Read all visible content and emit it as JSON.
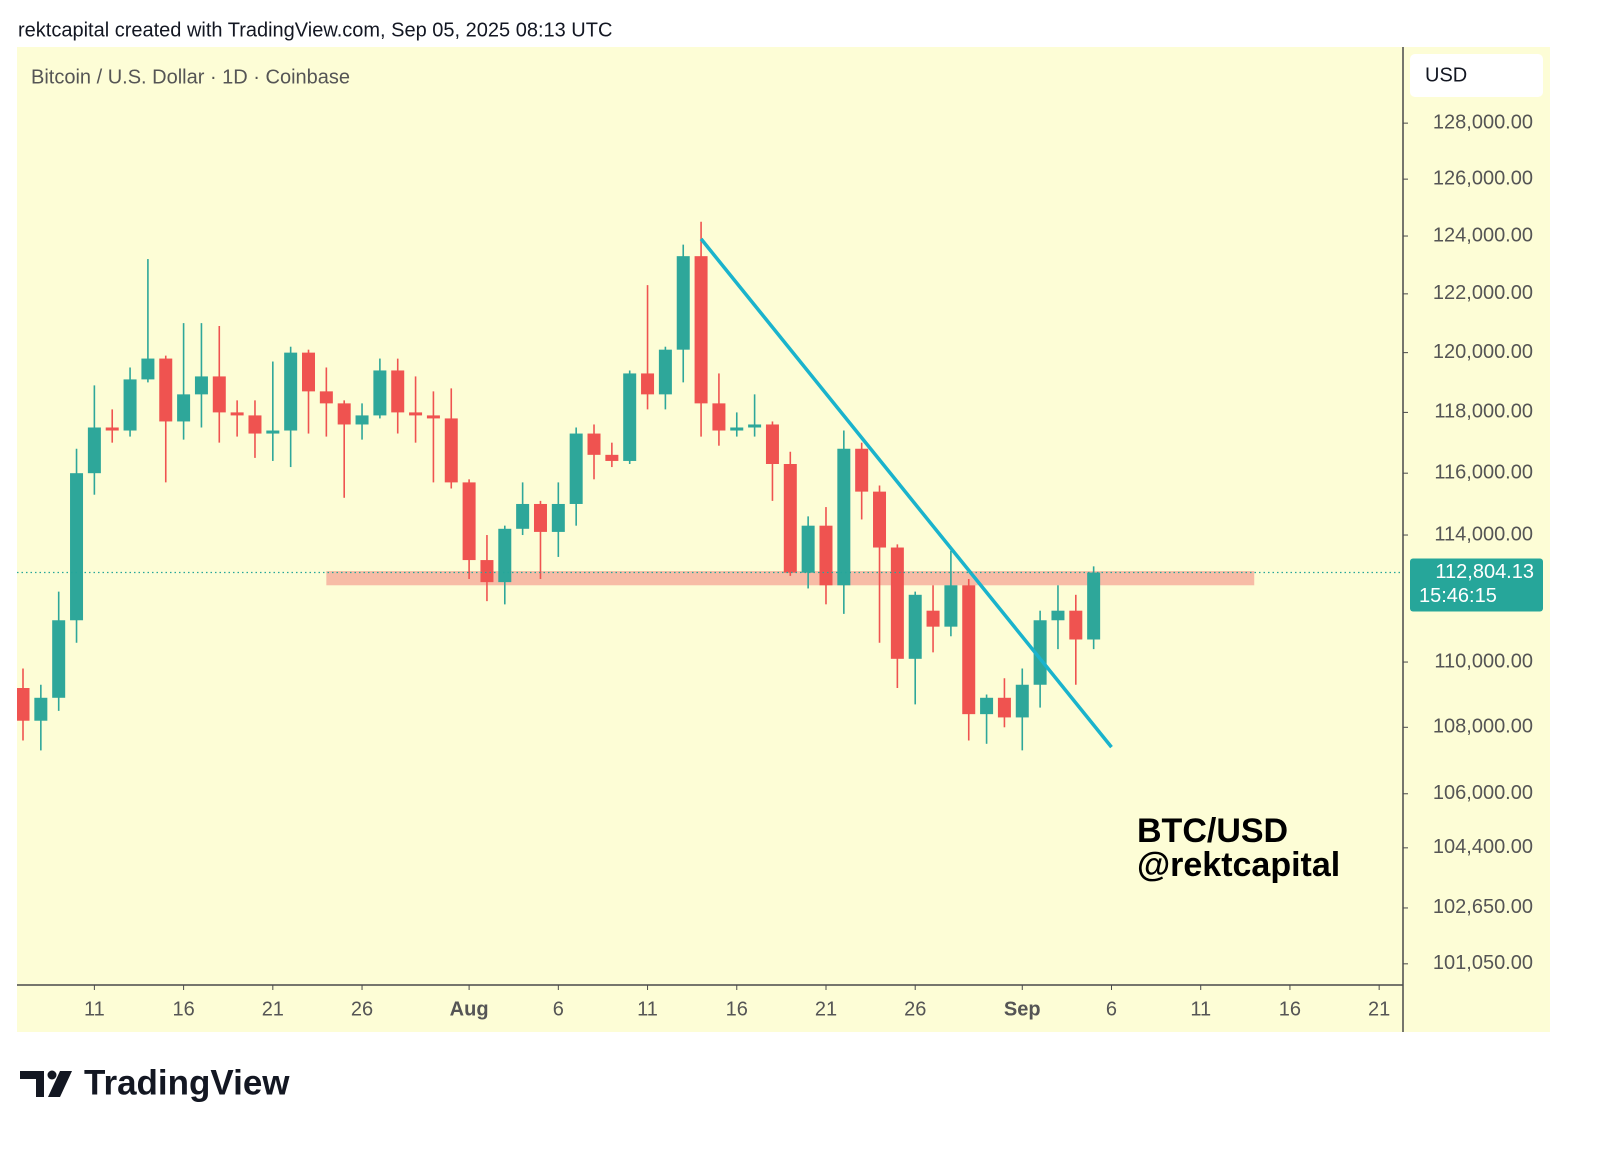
{
  "header": "rektcapital created with TradingView.com, Sep 05, 2025 08:13 UTC",
  "chart_data": {
    "type": "candlestick",
    "title": "Bitcoin / U.S. Dollar · 1D · Coinbase",
    "currency": "USD",
    "watermark": [
      "BTC/USD",
      "@rektcapital"
    ],
    "log_scale": true,
    "up_color": "#2ea79a",
    "down_color": "#ef5350",
    "x": [
      "07-07",
      "07-08",
      "07-09",
      "07-10",
      "07-11",
      "07-12",
      "07-13",
      "07-14",
      "07-15",
      "07-16",
      "07-17",
      "07-18",
      "07-19",
      "07-20",
      "07-21",
      "07-22",
      "07-23",
      "07-24",
      "07-25",
      "07-26",
      "07-27",
      "07-28",
      "07-29",
      "07-30",
      "07-31",
      "08-01",
      "08-02",
      "08-03",
      "08-04",
      "08-05",
      "08-06",
      "08-07",
      "08-08",
      "08-09",
      "08-10",
      "08-11",
      "08-12",
      "08-13",
      "08-14",
      "08-15",
      "08-16",
      "08-17",
      "08-18",
      "08-19",
      "08-20",
      "08-21",
      "08-22",
      "08-23",
      "08-24",
      "08-25",
      "08-26",
      "08-27",
      "08-28",
      "08-29",
      "08-30",
      "08-31",
      "09-01",
      "09-02",
      "09-03",
      "09-04",
      "09-05"
    ],
    "open": [
      109200,
      108200,
      108900,
      111300,
      116000,
      117500,
      117400,
      119100,
      119800,
      117700,
      118600,
      119200,
      118000,
      117900,
      117300,
      117400,
      120000,
      118700,
      118300,
      117600,
      117900,
      119400,
      118000,
      117900,
      117800,
      115700,
      113200,
      112500,
      114200,
      115000,
      114100,
      115000,
      117300,
      116600,
      116400,
      119300,
      118600,
      120100,
      123300,
      118300,
      117400,
      117500,
      117600,
      116300,
      112800,
      114300,
      112400,
      116800,
      115400,
      113600,
      110100,
      111600,
      111100,
      112400,
      108400,
      108900,
      108300,
      109300,
      111300,
      111600,
      110700
    ],
    "high": [
      109800,
      109300,
      112200,
      116800,
      118900,
      118100,
      119500,
      123200,
      119900,
      121000,
      121000,
      120900,
      118400,
      118400,
      119700,
      120200,
      120100,
      119500,
      118400,
      118300,
      119800,
      119800,
      119200,
      118700,
      118800,
      115800,
      114000,
      114300,
      115700,
      115100,
      115700,
      117500,
      117600,
      117000,
      119400,
      122300,
      120200,
      123700,
      124500,
      119300,
      118000,
      118600,
      117700,
      116700,
      114600,
      114900,
      117400,
      117000,
      115600,
      113700,
      112200,
      112400,
      113500,
      112600,
      109000,
      109500,
      109800,
      111600,
      112400,
      112100,
      113000
    ],
    "low": [
      107600,
      107300,
      108500,
      110600,
      115300,
      117000,
      117200,
      119000,
      115700,
      117100,
      117500,
      117000,
      117200,
      116500,
      116400,
      116200,
      117300,
      117200,
      115200,
      117100,
      117800,
      117300,
      117000,
      115700,
      115500,
      112600,
      111900,
      111800,
      114000,
      112600,
      113300,
      114300,
      115800,
      116200,
      116300,
      118100,
      118100,
      119000,
      117200,
      116900,
      117200,
      117200,
      115100,
      112700,
      112300,
      111800,
      111500,
      114500,
      110600,
      109200,
      108700,
      110300,
      110800,
      107600,
      107500,
      108000,
      107300,
      108600,
      110400,
      109300,
      110400
    ],
    "close": [
      108200,
      108900,
      111300,
      116000,
      117500,
      117400,
      119100,
      119800,
      117700,
      118600,
      119200,
      118000,
      117900,
      117300,
      117400,
      120000,
      118700,
      118300,
      117600,
      117900,
      119400,
      118000,
      117900,
      117800,
      115700,
      113200,
      112500,
      114200,
      115000,
      114100,
      115000,
      117300,
      116600,
      116400,
      119300,
      118600,
      120100,
      123300,
      118300,
      117400,
      117500,
      117600,
      116300,
      112800,
      114300,
      112400,
      116800,
      115400,
      113600,
      110100,
      112100,
      111100,
      112400,
      108400,
      108900,
      108300,
      109300,
      111300,
      111600,
      110700,
      112804.13
    ],
    "ylim": [
      100450,
      130770
    ],
    "yticks": [
      {
        "value": 128000,
        "label": "128,000.00"
      },
      {
        "value": 126000,
        "label": "126,000.00"
      },
      {
        "value": 124000,
        "label": "124,000.00"
      },
      {
        "value": 122000,
        "label": "122,000.00"
      },
      {
        "value": 120000,
        "label": "120,000.00"
      },
      {
        "value": 118000,
        "label": "118,000.00"
      },
      {
        "value": 116000,
        "label": "116,000.00"
      },
      {
        "value": 114000,
        "label": "114,000.00"
      },
      {
        "value": 110000,
        "label": "110,000.00"
      },
      {
        "value": 108000,
        "label": "108,000.00"
      },
      {
        "value": 106000,
        "label": "106,000.00"
      },
      {
        "value": 104400,
        "label": "104,400.00"
      },
      {
        "value": 102650,
        "label": "102,650.00"
      },
      {
        "value": 101050,
        "label": "101,050.00"
      }
    ],
    "xlim": [
      "07-07",
      "09-22"
    ],
    "xticks": [
      {
        "value": "07-11",
        "label": "11"
      },
      {
        "value": "07-16",
        "label": "16"
      },
      {
        "value": "07-21",
        "label": "21"
      },
      {
        "value": "07-26",
        "label": "26"
      },
      {
        "value": "08-01",
        "label": "Aug"
      },
      {
        "value": "08-06",
        "label": "6"
      },
      {
        "value": "08-11",
        "label": "11"
      },
      {
        "value": "08-16",
        "label": "16"
      },
      {
        "value": "08-21",
        "label": "21"
      },
      {
        "value": "08-26",
        "label": "26"
      },
      {
        "value": "09-01",
        "label": "Sep"
      },
      {
        "value": "09-06",
        "label": "6"
      },
      {
        "value": "09-11",
        "label": "11"
      },
      {
        "value": "09-16",
        "label": "16"
      },
      {
        "value": "09-21",
        "label": "21"
      }
    ],
    "last_price": {
      "value": 112804.13,
      "label": "112,804.13",
      "countdown": "15:46:15",
      "color": "#26a69a"
    },
    "trendline": {
      "x": [
        "08-14",
        "09-06"
      ],
      "y": [
        123900,
        107400
      ],
      "color": "#1ab3cc"
    },
    "zone": {
      "x": [
        "07-24",
        "09-14"
      ],
      "y": [
        112400,
        112850
      ],
      "color": "#f7bca6"
    }
  },
  "footer": {
    "logo": "TradingView"
  }
}
